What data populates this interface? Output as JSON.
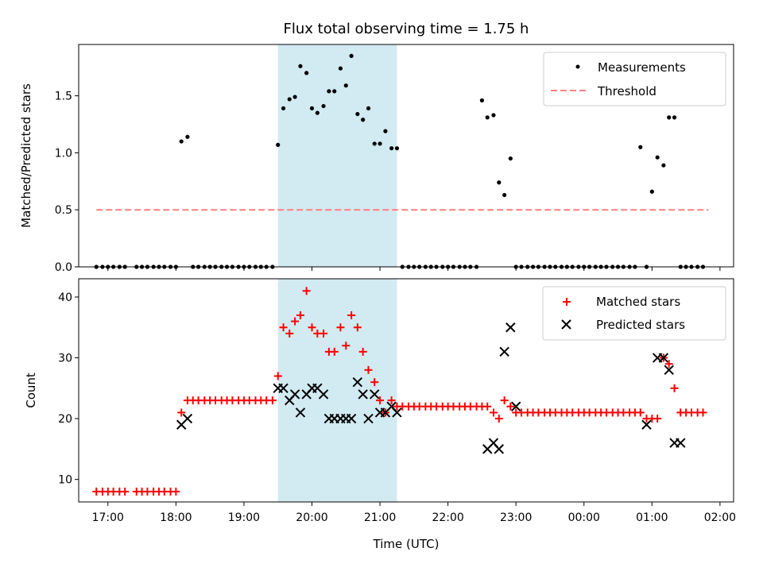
{
  "chart_data": [
    {
      "type": "scatter",
      "title": "Flux total observing time = 1.75 h",
      "ylabel": "Matched/Predicted stars",
      "ylim": [
        0,
        1.95
      ],
      "yticks": [
        0.0,
        0.5,
        1.0,
        1.5
      ],
      "ytick_labels": [
        "0.0",
        "0.5",
        "1.0",
        "1.5"
      ],
      "xlim": [
        16.57,
        26.2
      ],
      "shaded_span": [
        19.5,
        21.25
      ],
      "shade_color": "#add8e6",
      "threshold": {
        "name": "Threshold",
        "value": 0.5,
        "x": [
          16.83,
          25.83
        ],
        "color": "#ff7f7f"
      },
      "series": [
        {
          "name": "Measurements",
          "color": "#000000",
          "x": [
            16.83,
            16.92,
            17.0,
            17.08,
            17.17,
            17.25,
            17.42,
            17.5,
            17.58,
            17.67,
            17.75,
            17.83,
            17.92,
            18.0,
            18.08,
            18.17,
            18.25,
            18.33,
            18.42,
            18.5,
            18.58,
            18.67,
            18.75,
            18.83,
            18.92,
            19.0,
            19.08,
            19.17,
            19.25,
            19.33,
            19.42,
            19.5,
            19.58,
            19.67,
            19.75,
            19.83,
            19.92,
            20.0,
            20.08,
            20.17,
            20.25,
            20.33,
            20.42,
            20.5,
            20.58,
            20.67,
            20.75,
            20.83,
            20.92,
            21.0,
            21.08,
            21.17,
            21.25,
            21.33,
            21.42,
            21.5,
            21.58,
            21.67,
            21.75,
            21.83,
            21.92,
            22.0,
            22.08,
            22.17,
            22.25,
            22.33,
            22.42,
            22.5,
            22.58,
            22.67,
            22.75,
            22.83,
            22.92,
            23.0,
            23.08,
            23.17,
            23.25,
            23.33,
            23.42,
            23.5,
            23.58,
            23.67,
            23.75,
            23.83,
            23.92,
            24.0,
            24.08,
            24.17,
            24.25,
            24.33,
            24.42,
            24.5,
            24.58,
            24.67,
            24.75,
            24.83,
            24.92,
            25.0,
            25.08,
            25.17,
            25.25,
            25.33,
            25.42,
            25.5,
            25.58,
            25.67,
            25.75
          ],
          "y": [
            0,
            0,
            0,
            0,
            0,
            0,
            0,
            0,
            0,
            0,
            0,
            0,
            0,
            0,
            1.1,
            1.14,
            0,
            0,
            0,
            0,
            0,
            0,
            0,
            0,
            0,
            0,
            0,
            0,
            0,
            0,
            0,
            1.07,
            1.39,
            1.47,
            1.49,
            1.76,
            1.7,
            1.39,
            1.35,
            1.41,
            1.54,
            1.54,
            1.74,
            1.59,
            1.85,
            1.34,
            1.29,
            1.39,
            1.08,
            1.08,
            1.19,
            1.04,
            1.04,
            0,
            0,
            0,
            0,
            0,
            0,
            0,
            0,
            0,
            0,
            0,
            0,
            0,
            0,
            1.46,
            1.31,
            1.33,
            0.74,
            0.63,
            0.95,
            0,
            0,
            0,
            0,
            0,
            0,
            0,
            0,
            0,
            0,
            0,
            0,
            0,
            0,
            0,
            0,
            0,
            0,
            0,
            0,
            0,
            0,
            1.05,
            0,
            0.66,
            0.96,
            0.89,
            1.31,
            1.31,
            0,
            0,
            0,
            0,
            0
          ]
        }
      ]
    },
    {
      "type": "scatter",
      "xlabel": "Time (UTC)",
      "ylabel": "Count",
      "ylim": [
        6.3,
        43
      ],
      "yticks": [
        10,
        20,
        30,
        40
      ],
      "ytick_labels": [
        "10",
        "20",
        "30",
        "40"
      ],
      "xlim": [
        16.57,
        26.2
      ],
      "xticks": [
        17,
        18,
        19,
        20,
        21,
        22,
        23,
        24,
        25,
        26
      ],
      "xtick_labels": [
        "17:00",
        "18:00",
        "19:00",
        "20:00",
        "21:00",
        "22:00",
        "23:00",
        "00:00",
        "01:00",
        "02:00"
      ],
      "shaded_span": [
        19.5,
        21.25
      ],
      "series": [
        {
          "name": "Matched stars",
          "marker": "plus",
          "color": "#ff0000",
          "x": [
            16.83,
            16.92,
            17.0,
            17.08,
            17.17,
            17.25,
            17.42,
            17.5,
            17.58,
            17.67,
            17.75,
            17.83,
            17.92,
            18.0,
            18.08,
            18.17,
            18.25,
            18.33,
            18.42,
            18.5,
            18.58,
            18.67,
            18.75,
            18.83,
            18.92,
            19.0,
            19.08,
            19.17,
            19.25,
            19.33,
            19.42,
            19.5,
            19.58,
            19.67,
            19.75,
            19.83,
            19.92,
            20.0,
            20.08,
            20.17,
            20.25,
            20.33,
            20.42,
            20.5,
            20.58,
            20.67,
            20.75,
            20.83,
            20.92,
            21.0,
            21.08,
            21.17,
            21.25,
            21.33,
            21.42,
            21.5,
            21.58,
            21.67,
            21.75,
            21.83,
            21.92,
            22.0,
            22.08,
            22.17,
            22.25,
            22.33,
            22.42,
            22.5,
            22.58,
            22.67,
            22.75,
            22.83,
            22.92,
            23.0,
            23.08,
            23.17,
            23.25,
            23.33,
            23.42,
            23.5,
            23.58,
            23.67,
            23.75,
            23.83,
            23.92,
            24.0,
            24.08,
            24.17,
            24.25,
            24.33,
            24.42,
            24.5,
            24.58,
            24.67,
            24.75,
            24.83,
            24.92,
            25.0,
            25.08,
            25.17,
            25.25,
            25.33,
            25.42,
            25.5,
            25.58,
            25.67,
            25.75
          ],
          "y": [
            8,
            8,
            8,
            8,
            8,
            8,
            8,
            8,
            8,
            8,
            8,
            8,
            8,
            8,
            21,
            23,
            23,
            23,
            23,
            23,
            23,
            23,
            23,
            23,
            23,
            23,
            23,
            23,
            23,
            23,
            23,
            27,
            35,
            34,
            36,
            37,
            41,
            35,
            34,
            34,
            31,
            31,
            35,
            32,
            37,
            35,
            31,
            28,
            26,
            23,
            21,
            23,
            22,
            22,
            22,
            22,
            22,
            22,
            22,
            22,
            22,
            22,
            22,
            22,
            22,
            22,
            22,
            22,
            22,
            21,
            20,
            23,
            22,
            21,
            21,
            21,
            21,
            21,
            21,
            21,
            21,
            21,
            21,
            21,
            21,
            21,
            21,
            21,
            21,
            21,
            21,
            21,
            21,
            21,
            21,
            21,
            20,
            20,
            20,
            30,
            29,
            25,
            21,
            21,
            21,
            21,
            21
          ]
        },
        {
          "name": "Predicted stars",
          "marker": "x",
          "color": "#000000",
          "x": [
            18.08,
            18.17,
            19.5,
            19.58,
            19.67,
            19.75,
            19.83,
            19.92,
            20.0,
            20.08,
            20.17,
            20.25,
            20.33,
            20.42,
            20.5,
            20.58,
            20.67,
            20.75,
            20.83,
            20.92,
            21.0,
            21.08,
            21.17,
            21.25,
            22.58,
            22.67,
            22.75,
            22.83,
            22.92,
            23.0,
            24.92,
            25.08,
            25.17,
            25.25,
            25.33,
            25.42
          ],
          "y": [
            19,
            20,
            25,
            25,
            23,
            24,
            21,
            24,
            25,
            25,
            24,
            20,
            20,
            20,
            20,
            20,
            26,
            24,
            20,
            24,
            21,
            21,
            22,
            21,
            15,
            16,
            15,
            31,
            35,
            22,
            19,
            30,
            30,
            28,
            16,
            16
          ]
        }
      ]
    }
  ]
}
